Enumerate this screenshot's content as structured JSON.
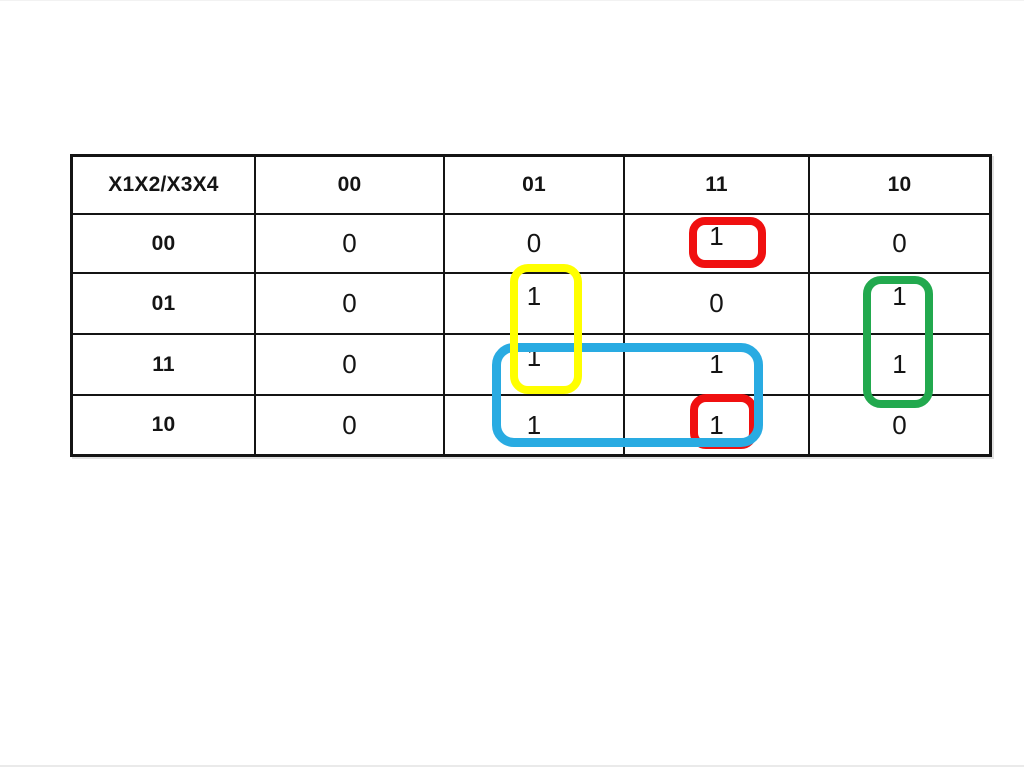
{
  "kmap": {
    "header": [
      "X1X2/X3X4",
      "00",
      "01",
      "11",
      "10"
    ],
    "rows": [
      {
        "label": "00",
        "values": [
          "0",
          "0",
          "1",
          "0"
        ]
      },
      {
        "label": "01",
        "values": [
          "0",
          "1",
          "0",
          "1"
        ]
      },
      {
        "label": "11",
        "values": [
          "0",
          "1",
          "1",
          "1"
        ]
      },
      {
        "label": "10",
        "values": [
          "0",
          "1",
          "1",
          "0"
        ]
      }
    ],
    "groups": [
      {
        "name": "red-group-top",
        "color": "#f01010",
        "cells": [
          "row00-col11"
        ]
      },
      {
        "name": "yellow-group",
        "color": "#ffff00",
        "cells": [
          "row01-col01",
          "row11-col01"
        ]
      },
      {
        "name": "green-group",
        "color": "#22a94e",
        "cells": [
          "row01-col10",
          "row11-col10"
        ]
      },
      {
        "name": "blue-group",
        "color": "#29abe2",
        "cells": [
          "row11-col01",
          "row11-col11",
          "row10-col01",
          "row10-col11"
        ]
      },
      {
        "name": "red-group-bottom",
        "color": "#f01010",
        "cells": [
          "row10-col11"
        ]
      }
    ]
  }
}
